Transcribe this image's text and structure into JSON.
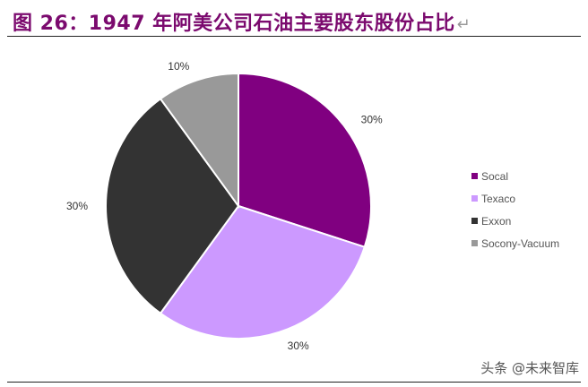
{
  "header": {
    "title": "图 26：1947 年阿美公司石油主要股东股份占比",
    "return_mark": "↵"
  },
  "watermark": "头条 @未来智库",
  "colors": {
    "title": "#7b0a6e",
    "socal": "#800080",
    "texaco": "#cc99ff",
    "exxon": "#333333",
    "socony": "#999999"
  },
  "chart_data": {
    "type": "pie",
    "title": "",
    "series": [
      {
        "name": "Socal",
        "value": 30,
        "label": "30%",
        "color": "#800080"
      },
      {
        "name": "Texaco",
        "value": 30,
        "label": "30%",
        "color": "#cc99ff"
      },
      {
        "name": "Exxon",
        "value": 30,
        "label": "30%",
        "color": "#333333"
      },
      {
        "name": "Socony-Vacuum",
        "value": 10,
        "label": "10%",
        "color": "#999999"
      }
    ],
    "start": "12 o'clock",
    "direction": "clockwise",
    "legend": "right"
  }
}
